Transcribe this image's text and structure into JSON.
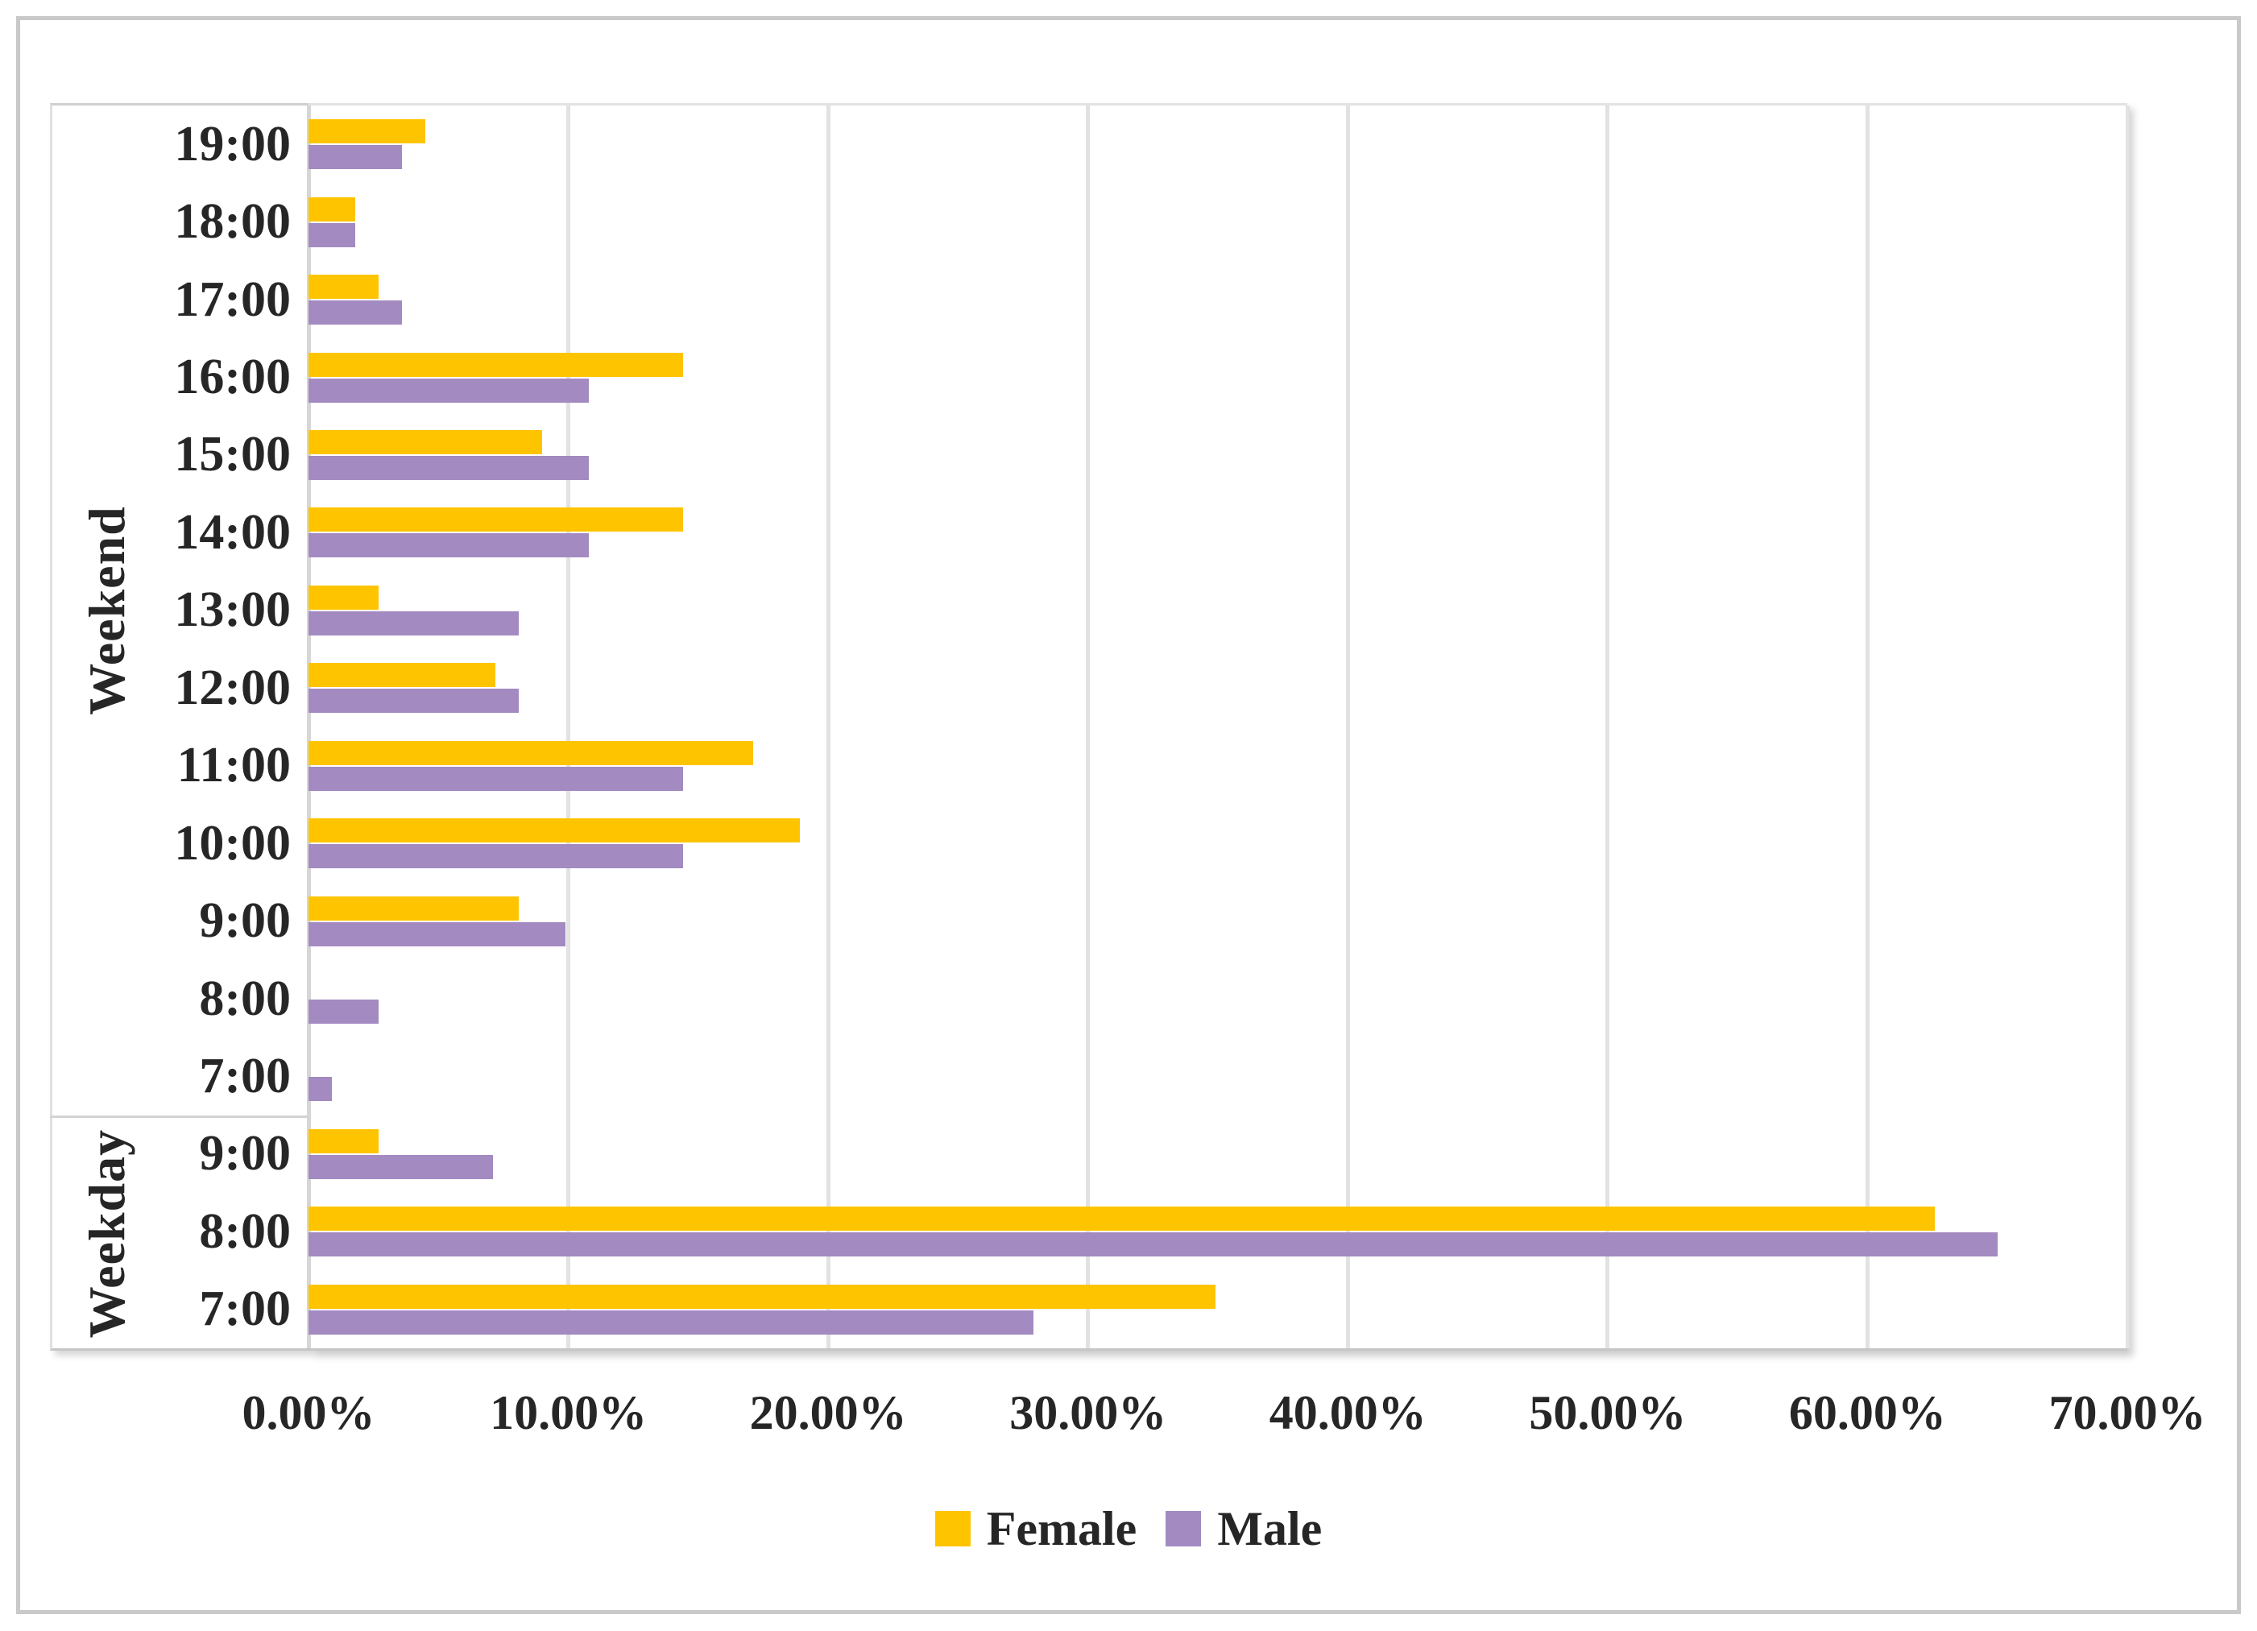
{
  "chart_data": {
    "type": "bar",
    "orientation": "horizontal",
    "title": "",
    "xlabel": "",
    "ylabel": "",
    "xlim": [
      0,
      70
    ],
    "grid": true,
    "x_tick_labels": [
      "0.00%",
      "10.00%",
      "20.00%",
      "30.00%",
      "40.00%",
      "50.00%",
      "60.00%",
      "70.00%"
    ],
    "legend_position": "bottom-center",
    "series_names": [
      "Female",
      "Male"
    ],
    "colors": {
      "Female": "#FFC400",
      "Male": "#A38AC1"
    },
    "groups": [
      {
        "label": "Weekend",
        "categories": [
          "19:00",
          "18:00",
          "17:00",
          "16:00",
          "15:00",
          "14:00",
          "13:00",
          "12:00",
          "11:00",
          "10:00",
          "9:00",
          "8:00",
          "7:00"
        ],
        "series": [
          {
            "name": "Female",
            "values": [
              4.5,
              1.8,
              2.7,
              14.4,
              9.0,
              14.4,
              2.7,
              7.2,
              17.1,
              18.9,
              8.1,
              0,
              0
            ]
          },
          {
            "name": "Male",
            "values": [
              3.6,
              1.8,
              3.6,
              10.8,
              10.8,
              10.8,
              8.1,
              8.1,
              14.4,
              14.4,
              9.9,
              2.7,
              0.9
            ]
          }
        ]
      },
      {
        "label": "Weekday",
        "categories": [
          "9:00",
          "8:00",
          "7:00"
        ],
        "series": [
          {
            "name": "Female",
            "values": [
              2.7,
              62.6,
              34.9
            ]
          },
          {
            "name": "Male",
            "values": [
              7.1,
              65.0,
              27.9
            ]
          }
        ]
      }
    ]
  },
  "legend": {
    "items": [
      {
        "label": "Female"
      },
      {
        "label": "Male"
      }
    ]
  }
}
